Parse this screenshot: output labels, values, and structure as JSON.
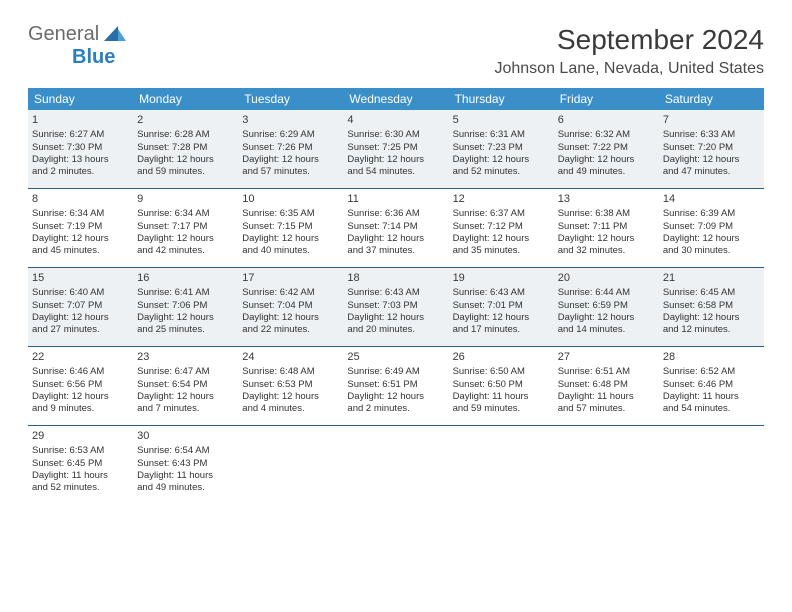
{
  "brand": {
    "text_general": "General",
    "text_blue": "Blue",
    "sail_color_dark": "#2a6ea8",
    "sail_color_light": "#4aa0d8"
  },
  "title": "September 2024",
  "location": "Johnson Lane, Nevada, United States",
  "colors": {
    "header_bg": "#3b8fc9",
    "header_text": "#ffffff",
    "row_border": "#2a5e8a",
    "shaded_bg": "#eef1f3",
    "body_text": "#333333"
  },
  "weekdays": [
    "Sunday",
    "Monday",
    "Tuesday",
    "Wednesday",
    "Thursday",
    "Friday",
    "Saturday"
  ],
  "weeks": [
    {
      "shaded": true,
      "days": [
        {
          "num": "1",
          "sunrise": "Sunrise: 6:27 AM",
          "sunset": "Sunset: 7:30 PM",
          "daylight1": "Daylight: 13 hours",
          "daylight2": "and 2 minutes."
        },
        {
          "num": "2",
          "sunrise": "Sunrise: 6:28 AM",
          "sunset": "Sunset: 7:28 PM",
          "daylight1": "Daylight: 12 hours",
          "daylight2": "and 59 minutes."
        },
        {
          "num": "3",
          "sunrise": "Sunrise: 6:29 AM",
          "sunset": "Sunset: 7:26 PM",
          "daylight1": "Daylight: 12 hours",
          "daylight2": "and 57 minutes."
        },
        {
          "num": "4",
          "sunrise": "Sunrise: 6:30 AM",
          "sunset": "Sunset: 7:25 PM",
          "daylight1": "Daylight: 12 hours",
          "daylight2": "and 54 minutes."
        },
        {
          "num": "5",
          "sunrise": "Sunrise: 6:31 AM",
          "sunset": "Sunset: 7:23 PM",
          "daylight1": "Daylight: 12 hours",
          "daylight2": "and 52 minutes."
        },
        {
          "num": "6",
          "sunrise": "Sunrise: 6:32 AM",
          "sunset": "Sunset: 7:22 PM",
          "daylight1": "Daylight: 12 hours",
          "daylight2": "and 49 minutes."
        },
        {
          "num": "7",
          "sunrise": "Sunrise: 6:33 AM",
          "sunset": "Sunset: 7:20 PM",
          "daylight1": "Daylight: 12 hours",
          "daylight2": "and 47 minutes."
        }
      ]
    },
    {
      "shaded": false,
      "days": [
        {
          "num": "8",
          "sunrise": "Sunrise: 6:34 AM",
          "sunset": "Sunset: 7:19 PM",
          "daylight1": "Daylight: 12 hours",
          "daylight2": "and 45 minutes."
        },
        {
          "num": "9",
          "sunrise": "Sunrise: 6:34 AM",
          "sunset": "Sunset: 7:17 PM",
          "daylight1": "Daylight: 12 hours",
          "daylight2": "and 42 minutes."
        },
        {
          "num": "10",
          "sunrise": "Sunrise: 6:35 AM",
          "sunset": "Sunset: 7:15 PM",
          "daylight1": "Daylight: 12 hours",
          "daylight2": "and 40 minutes."
        },
        {
          "num": "11",
          "sunrise": "Sunrise: 6:36 AM",
          "sunset": "Sunset: 7:14 PM",
          "daylight1": "Daylight: 12 hours",
          "daylight2": "and 37 minutes."
        },
        {
          "num": "12",
          "sunrise": "Sunrise: 6:37 AM",
          "sunset": "Sunset: 7:12 PM",
          "daylight1": "Daylight: 12 hours",
          "daylight2": "and 35 minutes."
        },
        {
          "num": "13",
          "sunrise": "Sunrise: 6:38 AM",
          "sunset": "Sunset: 7:11 PM",
          "daylight1": "Daylight: 12 hours",
          "daylight2": "and 32 minutes."
        },
        {
          "num": "14",
          "sunrise": "Sunrise: 6:39 AM",
          "sunset": "Sunset: 7:09 PM",
          "daylight1": "Daylight: 12 hours",
          "daylight2": "and 30 minutes."
        }
      ]
    },
    {
      "shaded": true,
      "days": [
        {
          "num": "15",
          "sunrise": "Sunrise: 6:40 AM",
          "sunset": "Sunset: 7:07 PM",
          "daylight1": "Daylight: 12 hours",
          "daylight2": "and 27 minutes."
        },
        {
          "num": "16",
          "sunrise": "Sunrise: 6:41 AM",
          "sunset": "Sunset: 7:06 PM",
          "daylight1": "Daylight: 12 hours",
          "daylight2": "and 25 minutes."
        },
        {
          "num": "17",
          "sunrise": "Sunrise: 6:42 AM",
          "sunset": "Sunset: 7:04 PM",
          "daylight1": "Daylight: 12 hours",
          "daylight2": "and 22 minutes."
        },
        {
          "num": "18",
          "sunrise": "Sunrise: 6:43 AM",
          "sunset": "Sunset: 7:03 PM",
          "daylight1": "Daylight: 12 hours",
          "daylight2": "and 20 minutes."
        },
        {
          "num": "19",
          "sunrise": "Sunrise: 6:43 AM",
          "sunset": "Sunset: 7:01 PM",
          "daylight1": "Daylight: 12 hours",
          "daylight2": "and 17 minutes."
        },
        {
          "num": "20",
          "sunrise": "Sunrise: 6:44 AM",
          "sunset": "Sunset: 6:59 PM",
          "daylight1": "Daylight: 12 hours",
          "daylight2": "and 14 minutes."
        },
        {
          "num": "21",
          "sunrise": "Sunrise: 6:45 AM",
          "sunset": "Sunset: 6:58 PM",
          "daylight1": "Daylight: 12 hours",
          "daylight2": "and 12 minutes."
        }
      ]
    },
    {
      "shaded": false,
      "days": [
        {
          "num": "22",
          "sunrise": "Sunrise: 6:46 AM",
          "sunset": "Sunset: 6:56 PM",
          "daylight1": "Daylight: 12 hours",
          "daylight2": "and 9 minutes."
        },
        {
          "num": "23",
          "sunrise": "Sunrise: 6:47 AM",
          "sunset": "Sunset: 6:54 PM",
          "daylight1": "Daylight: 12 hours",
          "daylight2": "and 7 minutes."
        },
        {
          "num": "24",
          "sunrise": "Sunrise: 6:48 AM",
          "sunset": "Sunset: 6:53 PM",
          "daylight1": "Daylight: 12 hours",
          "daylight2": "and 4 minutes."
        },
        {
          "num": "25",
          "sunrise": "Sunrise: 6:49 AM",
          "sunset": "Sunset: 6:51 PM",
          "daylight1": "Daylight: 12 hours",
          "daylight2": "and 2 minutes."
        },
        {
          "num": "26",
          "sunrise": "Sunrise: 6:50 AM",
          "sunset": "Sunset: 6:50 PM",
          "daylight1": "Daylight: 11 hours",
          "daylight2": "and 59 minutes."
        },
        {
          "num": "27",
          "sunrise": "Sunrise: 6:51 AM",
          "sunset": "Sunset: 6:48 PM",
          "daylight1": "Daylight: 11 hours",
          "daylight2": "and 57 minutes."
        },
        {
          "num": "28",
          "sunrise": "Sunrise: 6:52 AM",
          "sunset": "Sunset: 6:46 PM",
          "daylight1": "Daylight: 11 hours",
          "daylight2": "and 54 minutes."
        }
      ]
    },
    {
      "shaded": false,
      "days": [
        {
          "num": "29",
          "sunrise": "Sunrise: 6:53 AM",
          "sunset": "Sunset: 6:45 PM",
          "daylight1": "Daylight: 11 hours",
          "daylight2": "and 52 minutes."
        },
        {
          "num": "30",
          "sunrise": "Sunrise: 6:54 AM",
          "sunset": "Sunset: 6:43 PM",
          "daylight1": "Daylight: 11 hours",
          "daylight2": "and 49 minutes."
        },
        {
          "empty": true
        },
        {
          "empty": true
        },
        {
          "empty": true
        },
        {
          "empty": true
        },
        {
          "empty": true
        }
      ]
    }
  ]
}
